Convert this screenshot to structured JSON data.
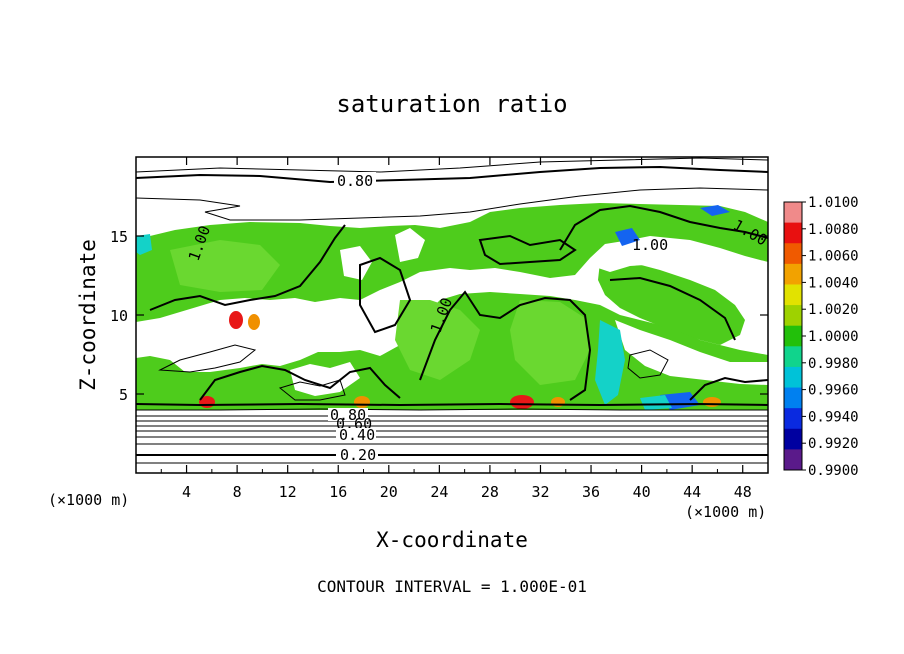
{
  "chart_data": {
    "type": "heatmap",
    "title": "saturation ratio",
    "xlabel": "X-coordinate",
    "ylabel": "Z-coordinate",
    "x_unit": "(×1000 m)",
    "y_unit": "(×1000 m)",
    "xlim": [
      0,
      50
    ],
    "ylim": [
      0,
      20
    ],
    "x_ticks": [
      4,
      8,
      12,
      16,
      20,
      24,
      28,
      32,
      36,
      40,
      44,
      48
    ],
    "y_ticks": [
      5,
      10,
      15
    ],
    "footnote": "CONTOUR INTERVAL = 1.000E-01",
    "contour_labels": [
      "0.80",
      "1.00",
      "1.00",
      "1.00",
      "1.00",
      "0.80",
      "0.60",
      "0.40",
      "0.20"
    ],
    "colorbar": {
      "labels": [
        "1.0100",
        "1.0080",
        "1.0060",
        "1.0040",
        "1.0020",
        "1.0000",
        "0.9980",
        "0.9960",
        "0.9940",
        "0.9920",
        "0.9900"
      ],
      "colors": [
        "#f08a8a",
        "#e81010",
        "#f05a00",
        "#f2a200",
        "#e2e200",
        "#9ed200",
        "#22c00a",
        "#10d48c",
        "#00c2d8",
        "#0080f0",
        "#0a2ae0",
        "#0000a0",
        "#5a1a8a"
      ]
    },
    "colors": {
      "green": "#4ecc1c",
      "light_green": "#6ad830",
      "cyan": "#14d2c8",
      "blue": "#1464f0",
      "red": "#e81818",
      "orange": "#f09000",
      "white": "#ffffff"
    }
  }
}
